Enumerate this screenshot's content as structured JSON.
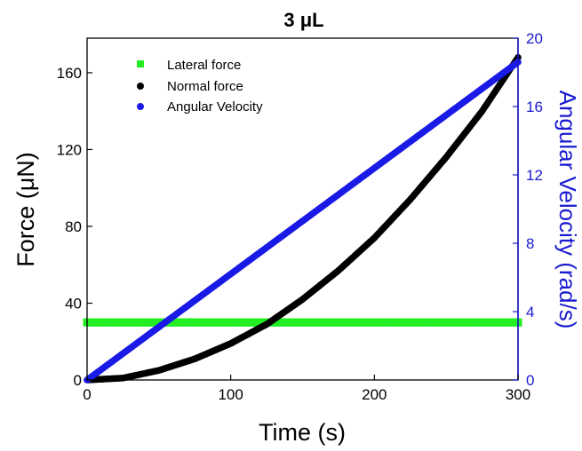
{
  "chart_data": {
    "type": "scatter",
    "title": "3 μL",
    "xlabel": "Time (s)",
    "ylabel": "Force (μN)",
    "y2label": "Angular Velocity (rad/s)",
    "xlim": [
      0,
      300
    ],
    "ylim": [
      0,
      178
    ],
    "y2lim": [
      0,
      20
    ],
    "xticks": [
      0,
      100,
      200,
      300
    ],
    "yticks": [
      0,
      40,
      80,
      120,
      160
    ],
    "y2ticks": [
      0,
      4,
      8,
      12,
      16,
      20
    ],
    "grid": false,
    "legend_position": "top-left",
    "series": [
      {
        "name": "Lateral force",
        "axis": "left",
        "color": "#22ee22",
        "marker": "square",
        "x": [
          0,
          300
        ],
        "y": [
          30,
          30
        ]
      },
      {
        "name": "Normal force",
        "axis": "left",
        "color": "#000000",
        "marker": "circle",
        "x": [
          0,
          25,
          50,
          75,
          100,
          125,
          150,
          175,
          200,
          225,
          250,
          275,
          300
        ],
        "y": [
          0,
          1,
          5,
          11,
          19,
          29,
          42,
          57,
          74,
          94,
          116,
          140,
          168
        ]
      },
      {
        "name": "Angular Velocity",
        "axis": "right",
        "color": "#1a1ae6",
        "marker": "circle",
        "x": [
          0,
          50,
          100,
          150,
          200,
          250,
          300
        ],
        "y": [
          0,
          3.1,
          6.2,
          9.3,
          12.4,
          15.5,
          18.6
        ]
      }
    ]
  }
}
